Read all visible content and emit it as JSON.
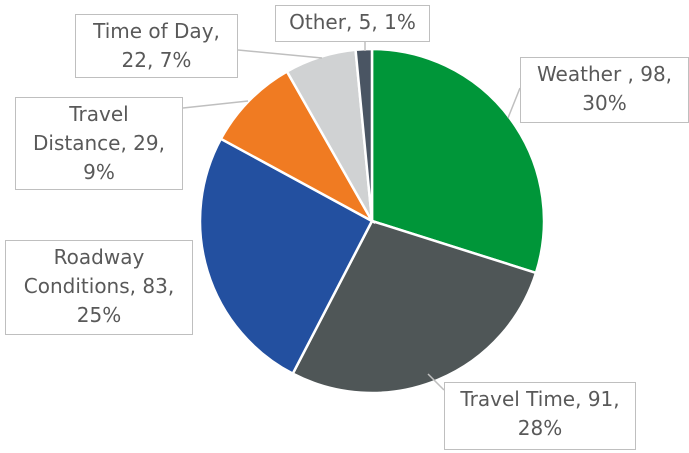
{
  "chart_data": {
    "type": "pie",
    "categories": [
      "Weather ",
      "Travel Time",
      "Roadway Conditions",
      "Travel Distance",
      "Time of Day",
      "Other"
    ],
    "values": [
      98,
      91,
      83,
      29,
      22,
      5
    ],
    "value_labels": [
      "Weather , 98, 30%",
      "Travel Time, 91, 28%",
      "Roadway Conditions, 83, 25%",
      "Travel Distance, 29, 9%",
      "Time of Day, 22, 7%",
      "Other, 5, 1%"
    ],
    "colors": [
      "#009639",
      "#4f5657",
      "#2350a0",
      "#f07b22",
      "#d0d2d3",
      "#4a5563"
    ]
  }
}
